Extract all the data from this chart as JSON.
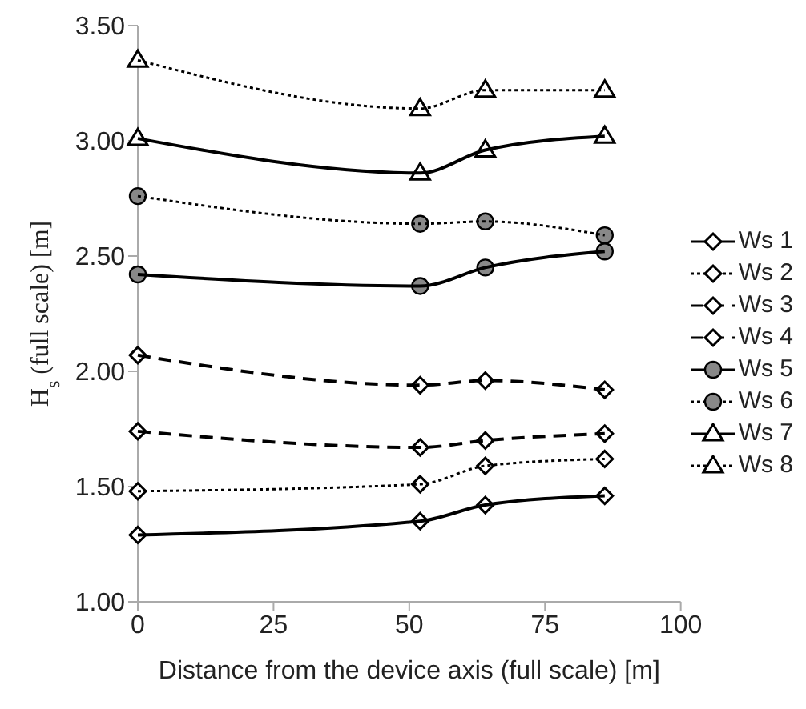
{
  "chart_data": {
    "type": "line",
    "xlabel": "Distance from the device axis (full scale) [m]",
    "ylabel": "H$_{s}$ (full scale) [m]",
    "x": [
      0,
      52,
      64,
      86
    ],
    "xlim": [
      0,
      100
    ],
    "xticks": [
      0,
      25,
      50,
      75,
      100
    ],
    "ylim": [
      1,
      3.5
    ],
    "yticks": [
      {
        "value": 1,
        "label": "1.00"
      },
      {
        "value": 1.5,
        "label": "1.50"
      },
      {
        "value": 2,
        "label": "2.00"
      },
      {
        "value": 2.5,
        "label": "2.50"
      },
      {
        "value": 3,
        "label": "3.00"
      },
      {
        "value": 3.5,
        "label": "3.50"
      }
    ],
    "grid": false,
    "legend": "right",
    "series": [
      {
        "name": "Ws 1",
        "color": "#000000",
        "marker": "diamond",
        "line_style": "solid",
        "values": [
          1.29,
          1.35,
          1.42,
          1.46
        ]
      },
      {
        "name": "Ws 2",
        "color": "#000000",
        "marker": "diamond",
        "line_style": "dotted",
        "values": [
          1.48,
          1.51,
          1.59,
          1.62
        ]
      },
      {
        "name": "Ws 3",
        "color": "#000000",
        "marker": "diamond",
        "line_style": "dashed",
        "values": [
          1.74,
          1.67,
          1.7,
          1.73
        ]
      },
      {
        "name": "Ws 4",
        "color": "#000000",
        "marker": "diamond",
        "line_style": "dashed",
        "values": [
          2.07,
          1.94,
          1.96,
          1.92
        ]
      },
      {
        "name": "Ws 5",
        "color": "#000000",
        "marker": "circle",
        "line_style": "solid",
        "values": [
          2.42,
          2.37,
          2.45,
          2.52
        ]
      },
      {
        "name": "Ws 6",
        "color": "#000000",
        "marker": "circle",
        "line_style": "dotted",
        "values": [
          2.76,
          2.64,
          2.65,
          2.59
        ]
      },
      {
        "name": "Ws 7",
        "color": "#000000",
        "marker": "triangle",
        "line_style": "solid",
        "values": [
          3.01,
          2.86,
          2.96,
          3.02
        ]
      },
      {
        "name": "Ws 8",
        "color": "#000000",
        "marker": "triangle",
        "line_style": "dotted",
        "values": [
          3.35,
          3.14,
          3.22,
          3.22
        ]
      }
    ]
  }
}
